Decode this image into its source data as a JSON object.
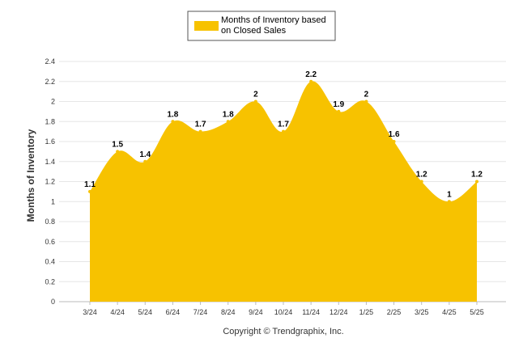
{
  "chart_data": {
    "type": "area",
    "ylabel": "Months of Inventory",
    "categories": [
      "3/24",
      "4/24",
      "5/24",
      "6/24",
      "7/24",
      "8/24",
      "9/24",
      "10/24",
      "11/24",
      "12/24",
      "1/25",
      "2/25",
      "3/25",
      "4/25",
      "5/25"
    ],
    "series": [
      {
        "name": "Months of Inventory based on Closed Sales",
        "values": [
          1.1,
          1.5,
          1.4,
          1.8,
          1.7,
          1.8,
          2,
          1.7,
          2.2,
          1.9,
          2,
          1.6,
          1.2,
          1,
          1.2
        ],
        "color": "#F7C200"
      }
    ],
    "ylim": [
      0,
      2.4
    ],
    "yticks": [
      "0",
      "0.2",
      "0.4",
      "0.6",
      "0.8",
      "1",
      "1.2",
      "1.4",
      "1.6",
      "1.8",
      "2",
      "2.2",
      "2.4"
    ],
    "grid": true,
    "legend_position": "top-center"
  },
  "legend": {
    "line1": "Months of Inventory based",
    "line2": "on Closed Sales"
  },
  "credit": "Copyright © Trendgraphix, Inc."
}
